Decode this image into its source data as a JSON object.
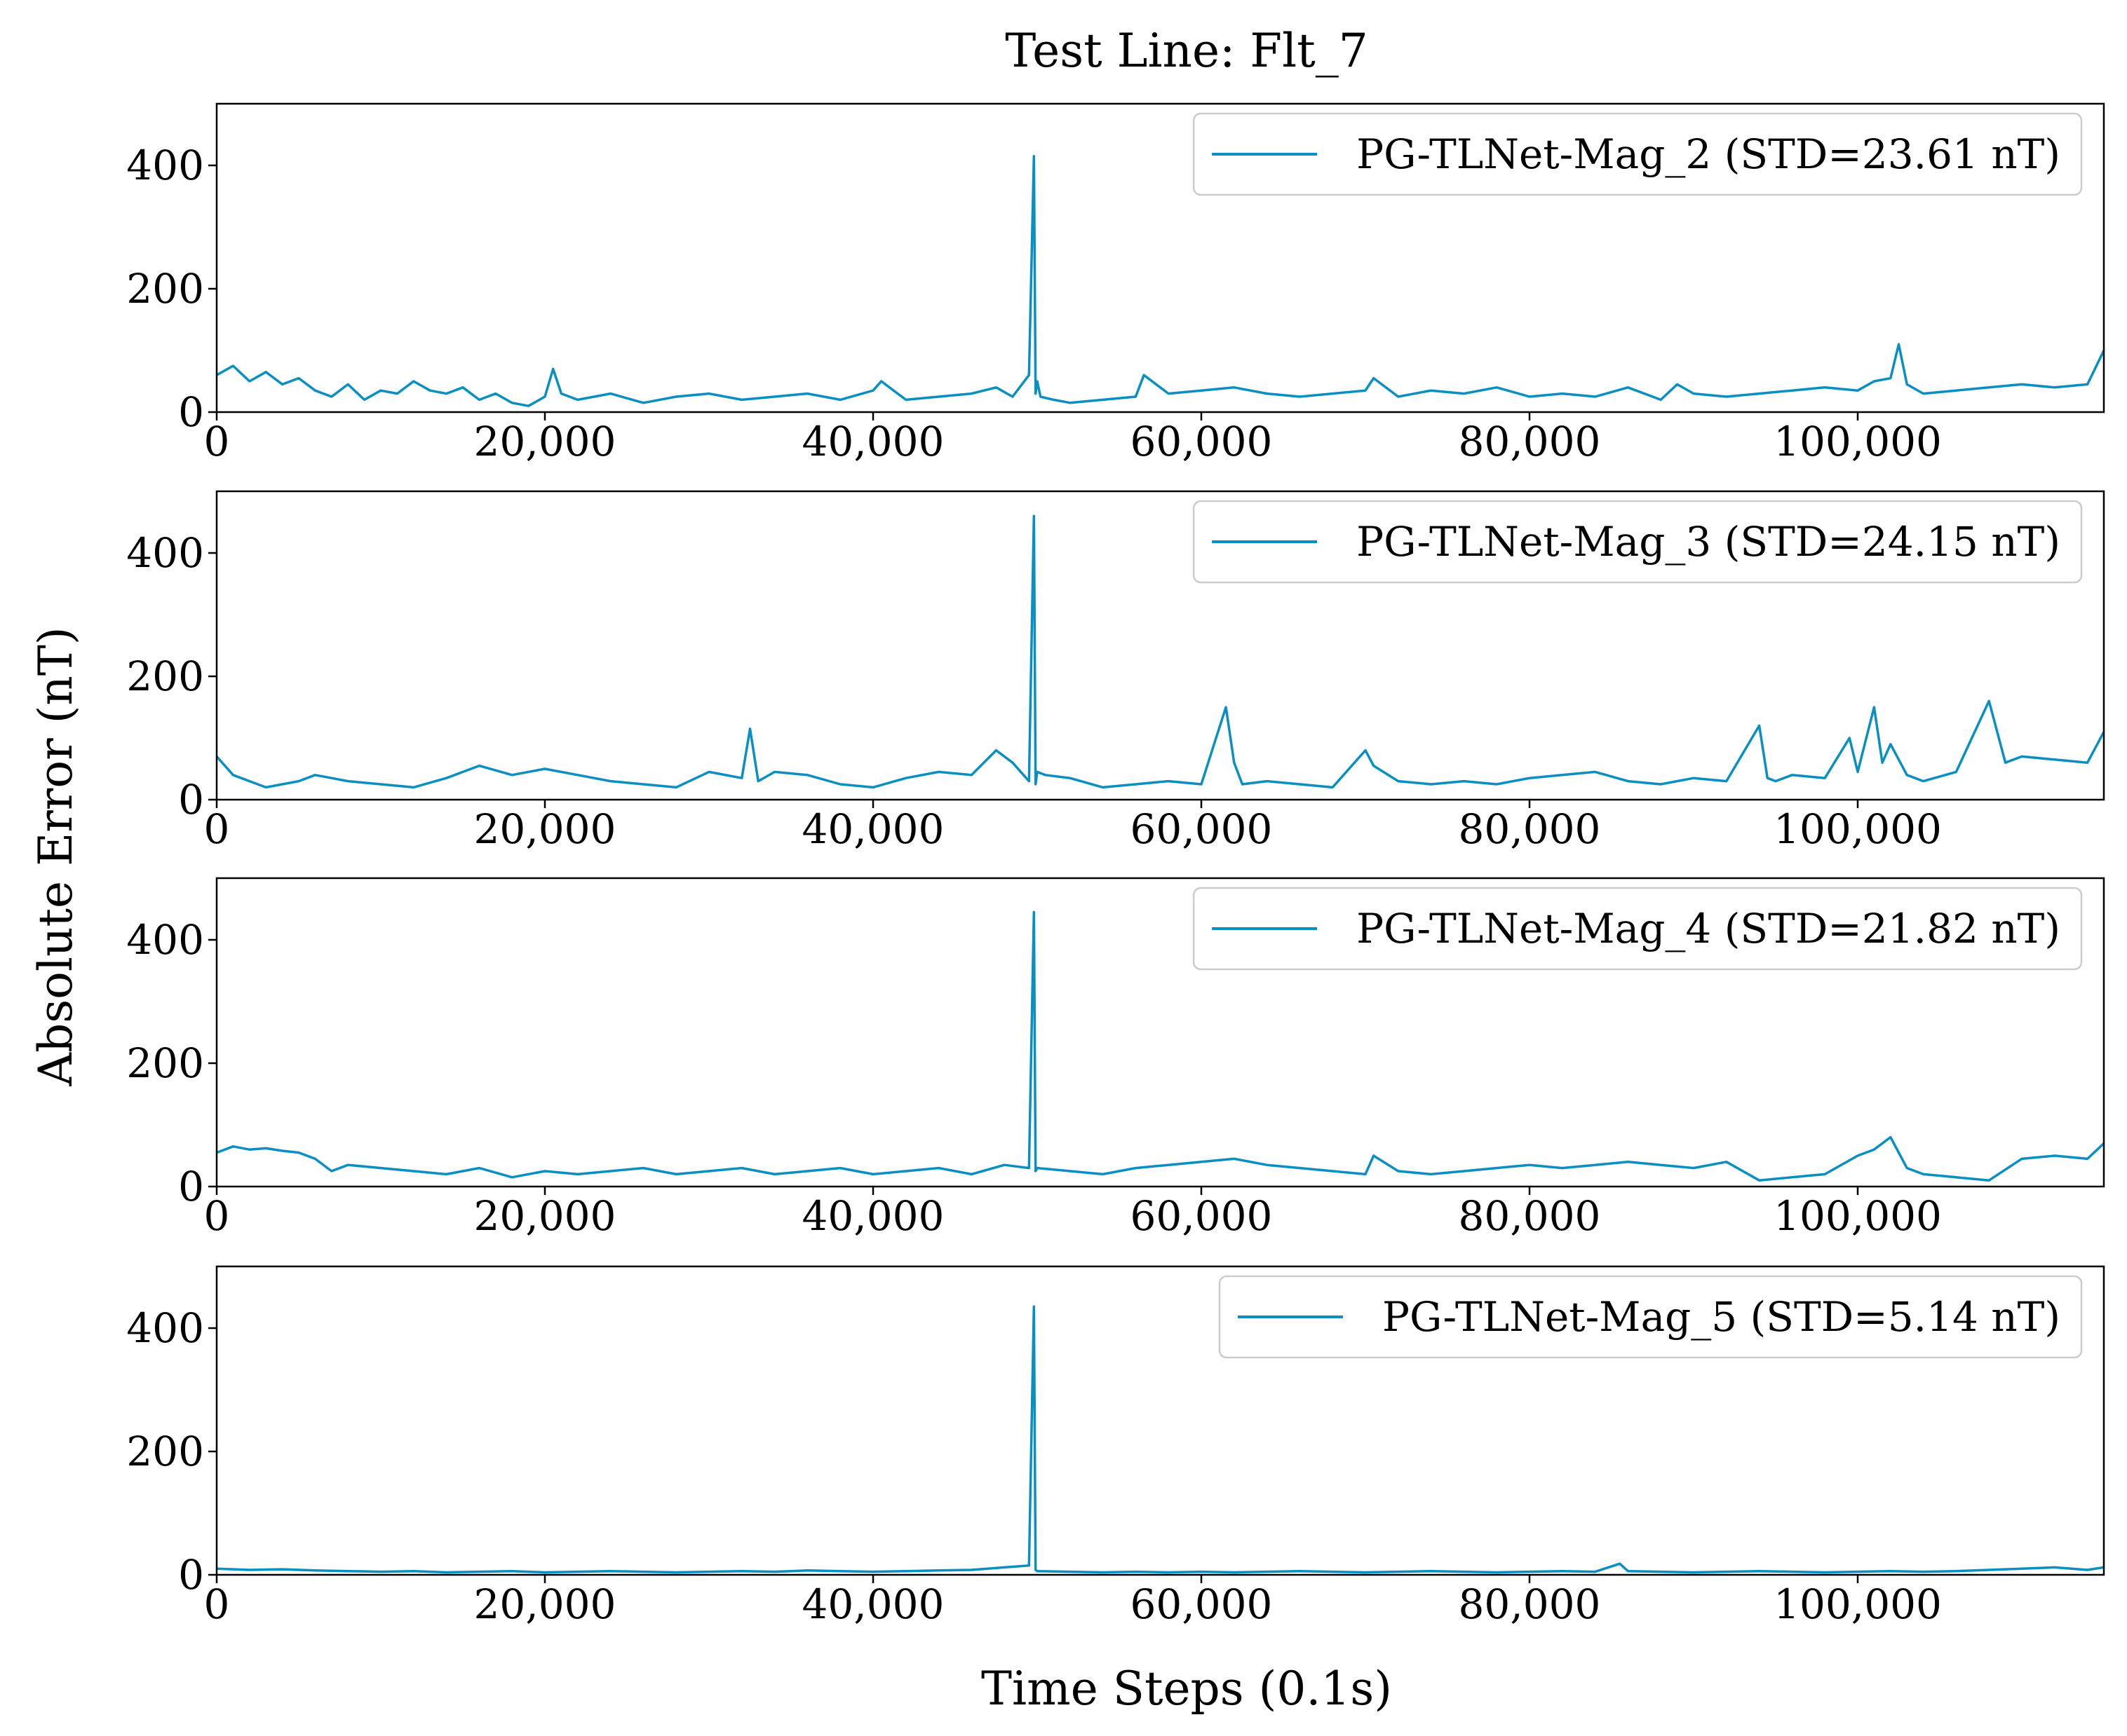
{
  "figure": {
    "title": "Test Line: Flt_7",
    "xlabel": "Time Steps (0.1s)",
    "ylabel": "Absolute Error (nT)"
  },
  "chart_data": [
    {
      "type": "line",
      "xlim": [
        0,
        115000
      ],
      "ylim": [
        0,
        500
      ],
      "xticks": [
        0,
        20000,
        40000,
        60000,
        80000,
        100000
      ],
      "xtick_labels": [
        "0",
        "20,000",
        "40,000",
        "60,000",
        "80,000",
        "100,000"
      ],
      "yticks": [
        0,
        200,
        400
      ],
      "ytick_labels": [
        "0",
        "200",
        "400"
      ],
      "grid": false,
      "legend_position": "top-right",
      "series": [
        {
          "name": "PG-TLNet-Mag_2 (STD=23.61 nT)",
          "color": "#0a8fc2",
          "x": [
            0,
            1000,
            2000,
            3000,
            4000,
            5000,
            6000,
            7000,
            8000,
            9000,
            10000,
            11000,
            12000,
            13000,
            14000,
            15000,
            16000,
            17000,
            18000,
            19000,
            20000,
            20500,
            21000,
            22000,
            24000,
            26000,
            28000,
            30000,
            32000,
            34000,
            36000,
            38000,
            40000,
            40500,
            42000,
            44000,
            46000,
            47500,
            48500,
            49500,
            49800,
            49900,
            50000,
            50200,
            51000,
            52000,
            54000,
            56000,
            56500,
            58000,
            60000,
            62000,
            64000,
            66000,
            68000,
            70000,
            70500,
            72000,
            74000,
            76000,
            78000,
            80000,
            82000,
            84000,
            86000,
            88000,
            89000,
            90000,
            92000,
            94000,
            96000,
            98000,
            100000,
            101000,
            102000,
            102500,
            103000,
            104000,
            106000,
            108000,
            110000,
            112000,
            114000,
            115000
          ],
          "values": [
            60,
            75,
            50,
            65,
            45,
            55,
            35,
            25,
            45,
            20,
            35,
            30,
            50,
            35,
            30,
            40,
            20,
            30,
            15,
            10,
            25,
            70,
            30,
            20,
            30,
            15,
            25,
            30,
            20,
            25,
            30,
            20,
            35,
            50,
            20,
            25,
            30,
            40,
            25,
            60,
            415,
            30,
            50,
            25,
            20,
            15,
            20,
            25,
            60,
            30,
            35,
            40,
            30,
            25,
            30,
            35,
            55,
            25,
            35,
            30,
            40,
            25,
            30,
            25,
            40,
            20,
            45,
            30,
            25,
            30,
            35,
            40,
            35,
            50,
            55,
            110,
            45,
            30,
            35,
            40,
            45,
            40,
            45,
            100
          ]
        }
      ]
    },
    {
      "type": "line",
      "xlim": [
        0,
        115000
      ],
      "ylim": [
        0,
        500
      ],
      "xticks": [
        0,
        20000,
        40000,
        60000,
        80000,
        100000
      ],
      "xtick_labels": [
        "0",
        "20,000",
        "40,000",
        "60,000",
        "80,000",
        "100,000"
      ],
      "yticks": [
        0,
        200,
        400
      ],
      "ytick_labels": [
        "0",
        "200",
        "400"
      ],
      "grid": false,
      "legend_position": "top-right",
      "series": [
        {
          "name": "PG-TLNet-Mag_3 (STD=24.15 nT)",
          "color": "#0a8fc2",
          "x": [
            0,
            1000,
            2000,
            3000,
            4000,
            5000,
            6000,
            7000,
            8000,
            10000,
            12000,
            14000,
            15000,
            16000,
            18000,
            20000,
            22000,
            24000,
            26000,
            28000,
            30000,
            32000,
            32500,
            33000,
            34000,
            36000,
            38000,
            40000,
            42000,
            44000,
            46000,
            47500,
            48500,
            49500,
            49800,
            49900,
            50000,
            50500,
            52000,
            54000,
            56000,
            58000,
            60000,
            61500,
            62000,
            62500,
            64000,
            66000,
            68000,
            70000,
            70500,
            72000,
            74000,
            76000,
            78000,
            80000,
            82000,
            84000,
            86000,
            88000,
            90000,
            92000,
            94000,
            94500,
            95000,
            96000,
            98000,
            99500,
            100000,
            101000,
            101500,
            102000,
            103000,
            104000,
            106000,
            108000,
            109000,
            110000,
            112000,
            114000,
            115000
          ],
          "values": [
            70,
            40,
            30,
            20,
            25,
            30,
            40,
            35,
            30,
            25,
            20,
            35,
            45,
            55,
            40,
            50,
            40,
            30,
            25,
            20,
            45,
            35,
            115,
            30,
            45,
            40,
            25,
            20,
            35,
            45,
            40,
            80,
            60,
            30,
            460,
            25,
            45,
            40,
            35,
            20,
            25,
            30,
            25,
            150,
            60,
            25,
            30,
            25,
            20,
            80,
            55,
            30,
            25,
            30,
            25,
            35,
            40,
            45,
            30,
            25,
            35,
            30,
            120,
            35,
            30,
            40,
            35,
            100,
            45,
            150,
            60,
            90,
            40,
            30,
            45,
            160,
            60,
            70,
            65,
            60,
            110
          ]
        }
      ]
    },
    {
      "type": "line",
      "xlim": [
        0,
        115000
      ],
      "ylim": [
        0,
        500
      ],
      "xticks": [
        0,
        20000,
        40000,
        60000,
        80000,
        100000
      ],
      "xtick_labels": [
        "0",
        "20,000",
        "40,000",
        "60,000",
        "80,000",
        "100,000"
      ],
      "yticks": [
        0,
        200,
        400
      ],
      "ytick_labels": [
        "0",
        "200",
        "400"
      ],
      "grid": false,
      "legend_position": "top-right",
      "series": [
        {
          "name": "PG-TLNet-Mag_4 (STD=21.82 nT)",
          "color": "#0a8fc2",
          "x": [
            0,
            1000,
            2000,
            3000,
            4000,
            5000,
            6000,
            7000,
            8000,
            10000,
            12000,
            14000,
            16000,
            18000,
            20000,
            22000,
            24000,
            26000,
            28000,
            30000,
            32000,
            34000,
            36000,
            38000,
            40000,
            42000,
            44000,
            46000,
            48000,
            49500,
            49800,
            49900,
            50000,
            52000,
            54000,
            56000,
            58000,
            60000,
            62000,
            64000,
            66000,
            68000,
            70000,
            70500,
            72000,
            74000,
            76000,
            78000,
            80000,
            82000,
            84000,
            86000,
            88000,
            90000,
            92000,
            94000,
            96000,
            98000,
            100000,
            101000,
            102000,
            103000,
            104000,
            106000,
            108000,
            110000,
            112000,
            114000,
            115000
          ],
          "values": [
            55,
            65,
            60,
            62,
            58,
            55,
            45,
            25,
            35,
            30,
            25,
            20,
            30,
            15,
            25,
            20,
            25,
            30,
            20,
            25,
            30,
            20,
            25,
            30,
            20,
            25,
            30,
            20,
            35,
            30,
            445,
            25,
            30,
            25,
            20,
            30,
            35,
            40,
            45,
            35,
            30,
            25,
            20,
            50,
            25,
            20,
            25,
            30,
            35,
            30,
            35,
            40,
            35,
            30,
            40,
            10,
            15,
            20,
            50,
            60,
            80,
            30,
            20,
            15,
            10,
            45,
            50,
            45,
            70
          ]
        }
      ]
    },
    {
      "type": "line",
      "xlim": [
        0,
        115000
      ],
      "ylim": [
        0,
        500
      ],
      "xticks": [
        0,
        20000,
        40000,
        60000,
        80000,
        100000
      ],
      "xtick_labels": [
        "0",
        "20,000",
        "40,000",
        "60,000",
        "80,000",
        "100,000"
      ],
      "yticks": [
        0,
        200,
        400
      ],
      "ytick_labels": [
        "0",
        "200",
        "400"
      ],
      "grid": false,
      "legend_position": "top-right",
      "series": [
        {
          "name": "PG-TLNet-Mag_5 (STD=5.14 nT)",
          "color": "#0a8fc2",
          "x": [
            0,
            2000,
            4000,
            6000,
            8000,
            10000,
            12000,
            14000,
            16000,
            18000,
            20000,
            22000,
            24000,
            26000,
            28000,
            30000,
            32000,
            34000,
            36000,
            38000,
            40000,
            42000,
            44000,
            46000,
            48000,
            49500,
            49800,
            49900,
            50000,
            52000,
            54000,
            56000,
            58000,
            60000,
            62000,
            64000,
            66000,
            68000,
            70000,
            72000,
            74000,
            76000,
            78000,
            80000,
            82000,
            84000,
            85500,
            86000,
            88000,
            90000,
            92000,
            94000,
            96000,
            98000,
            100000,
            102000,
            104000,
            106000,
            108000,
            110000,
            112000,
            114000,
            115000
          ],
          "values": [
            10,
            8,
            9,
            7,
            6,
            5,
            6,
            4,
            5,
            6,
            4,
            5,
            6,
            5,
            4,
            5,
            6,
            5,
            7,
            6,
            5,
            6,
            7,
            8,
            12,
            15,
            435,
            8,
            6,
            5,
            4,
            5,
            4,
            5,
            4,
            5,
            6,
            5,
            4,
            5,
            6,
            5,
            4,
            5,
            6,
            5,
            18,
            6,
            5,
            4,
            5,
            6,
            5,
            4,
            5,
            6,
            5,
            6,
            8,
            10,
            12,
            8,
            12
          ]
        }
      ]
    }
  ]
}
